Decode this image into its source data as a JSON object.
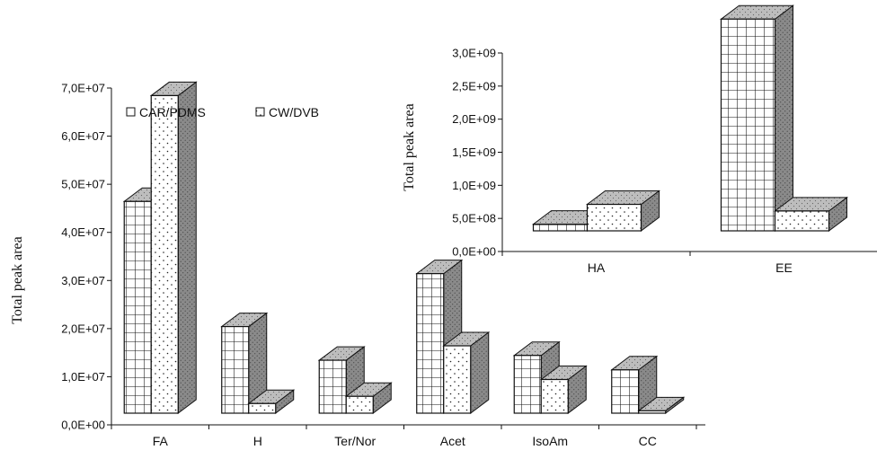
{
  "chart_data": [
    {
      "type": "bar",
      "ylabel": "Total peak area",
      "ylim": [
        0,
        70000000
      ],
      "yticks": [
        "0,0E+00",
        "1,0E+07",
        "2,0E+07",
        "3,0E+07",
        "4,0E+07",
        "5,0E+07",
        "6,0E+07",
        "7,0E+07"
      ],
      "categories": [
        "FA",
        "H",
        "Ter/Nor",
        "Acet",
        "IsoAm",
        "CC"
      ],
      "legend_position": "top-left",
      "series": [
        {
          "name": "CAR/PDMS",
          "pattern": "grid",
          "values": [
            44000000,
            18000000,
            11000000,
            29000000,
            12000000,
            9000000
          ]
        },
        {
          "name": "CW/DVB",
          "pattern": "dots",
          "values": [
            66000000,
            2000000,
            3500000,
            14000000,
            7000000,
            500000
          ]
        }
      ]
    },
    {
      "type": "bar",
      "ylabel": "Total peak area",
      "ylim": [
        0,
        3000000000
      ],
      "yticks": [
        "0,0E+00",
        "5,0E+08",
        "1,0E+09",
        "1,5E+09",
        "2,0E+09",
        "2,5E+09",
        "3,0E+09"
      ],
      "categories": [
        "HA",
        "EE"
      ],
      "series": [
        {
          "name": "CAR/PDMS",
          "pattern": "grid",
          "values": [
            100000000,
            3200000000
          ]
        },
        {
          "name": "CW/DVB",
          "pattern": "dots",
          "values": [
            400000000,
            300000000
          ]
        }
      ]
    }
  ],
  "colors": {
    "front": "#ffffff",
    "top": "#bdbdbd",
    "side": "#8a8a8a",
    "ink": "#111111"
  }
}
